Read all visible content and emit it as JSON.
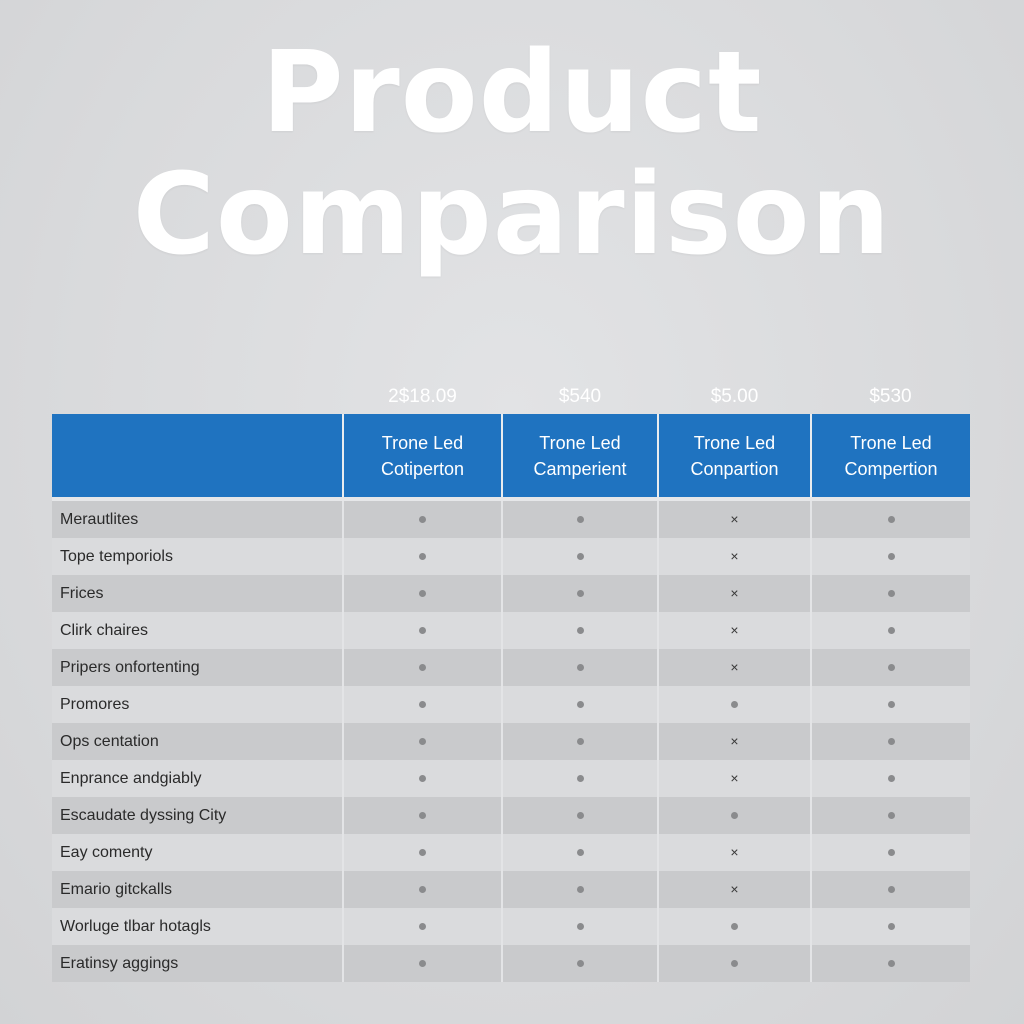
{
  "title": {
    "line1": "Product",
    "line2": "Comparison"
  },
  "prices": [
    "2$18.09",
    "$540",
    "$5.00",
    "$530"
  ],
  "columns": [
    {
      "line1": "Trone Led",
      "line2": "Cotiperton"
    },
    {
      "line1": "Trone Led",
      "line2": "Camperient"
    },
    {
      "line1": "Trone Led",
      "line2": "Conpartion"
    },
    {
      "line1": "Trone Led",
      "line2": "Compertion"
    }
  ],
  "rows": [
    {
      "feature": "Merautlites",
      "values": [
        "dot",
        "dot",
        "cross",
        "dot"
      ]
    },
    {
      "feature": "Tope temporiols",
      "values": [
        "dot",
        "dot",
        "cross",
        "dot"
      ]
    },
    {
      "feature": "Frices",
      "values": [
        "dot",
        "dot",
        "cross",
        "dot"
      ]
    },
    {
      "feature": "Clirk chaires",
      "values": [
        "dot",
        "dot",
        "cross",
        "dot"
      ]
    },
    {
      "feature": "Pripers onfortenting",
      "values": [
        "dot",
        "dot",
        "cross",
        "dot"
      ]
    },
    {
      "feature": "Promores",
      "values": [
        "dot",
        "dot",
        "dot",
        "dot"
      ]
    },
    {
      "feature": "Ops centation",
      "values": [
        "dot",
        "dot",
        "cross",
        "dot"
      ]
    },
    {
      "feature": "Enprance andgiably",
      "values": [
        "dot",
        "dot",
        "cross",
        "dot"
      ]
    },
    {
      "feature": "Escaudate dyssing City",
      "values": [
        "dot",
        "dot",
        "dot",
        "dot"
      ]
    },
    {
      "feature": "Eay comenty",
      "values": [
        "dot",
        "dot",
        "cross",
        "dot"
      ]
    },
    {
      "feature": "Emario gitckalls",
      "values": [
        "dot",
        "dot",
        "cross",
        "dot"
      ]
    },
    {
      "feature": "Worluge tlbar hotagls",
      "values": [
        "dot",
        "dot",
        "dot",
        "dot"
      ]
    },
    {
      "feature": "Eratinsy aggings",
      "values": [
        "dot",
        "dot",
        "dot",
        "dot"
      ]
    }
  ],
  "symbols": {
    "dot": "•",
    "cross": "×"
  },
  "colors": {
    "header_blue": "#1f73c0",
    "row_dark": "#c9cacc",
    "row_light": "#dadbdd",
    "title_text": "#ffffff"
  }
}
